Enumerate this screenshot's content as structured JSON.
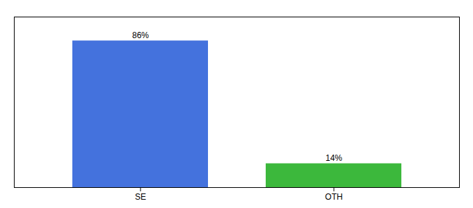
{
  "chart_data": {
    "type": "bar",
    "categories": [
      "SE",
      "OTH"
    ],
    "values": [
      86,
      14
    ],
    "value_labels": [
      "86%",
      "14%"
    ],
    "data_labels": true,
    "colors": [
      "#4472dd",
      "#3cb83c"
    ],
    "ylim": [
      0,
      100
    ],
    "tick_labels": "x"
  }
}
